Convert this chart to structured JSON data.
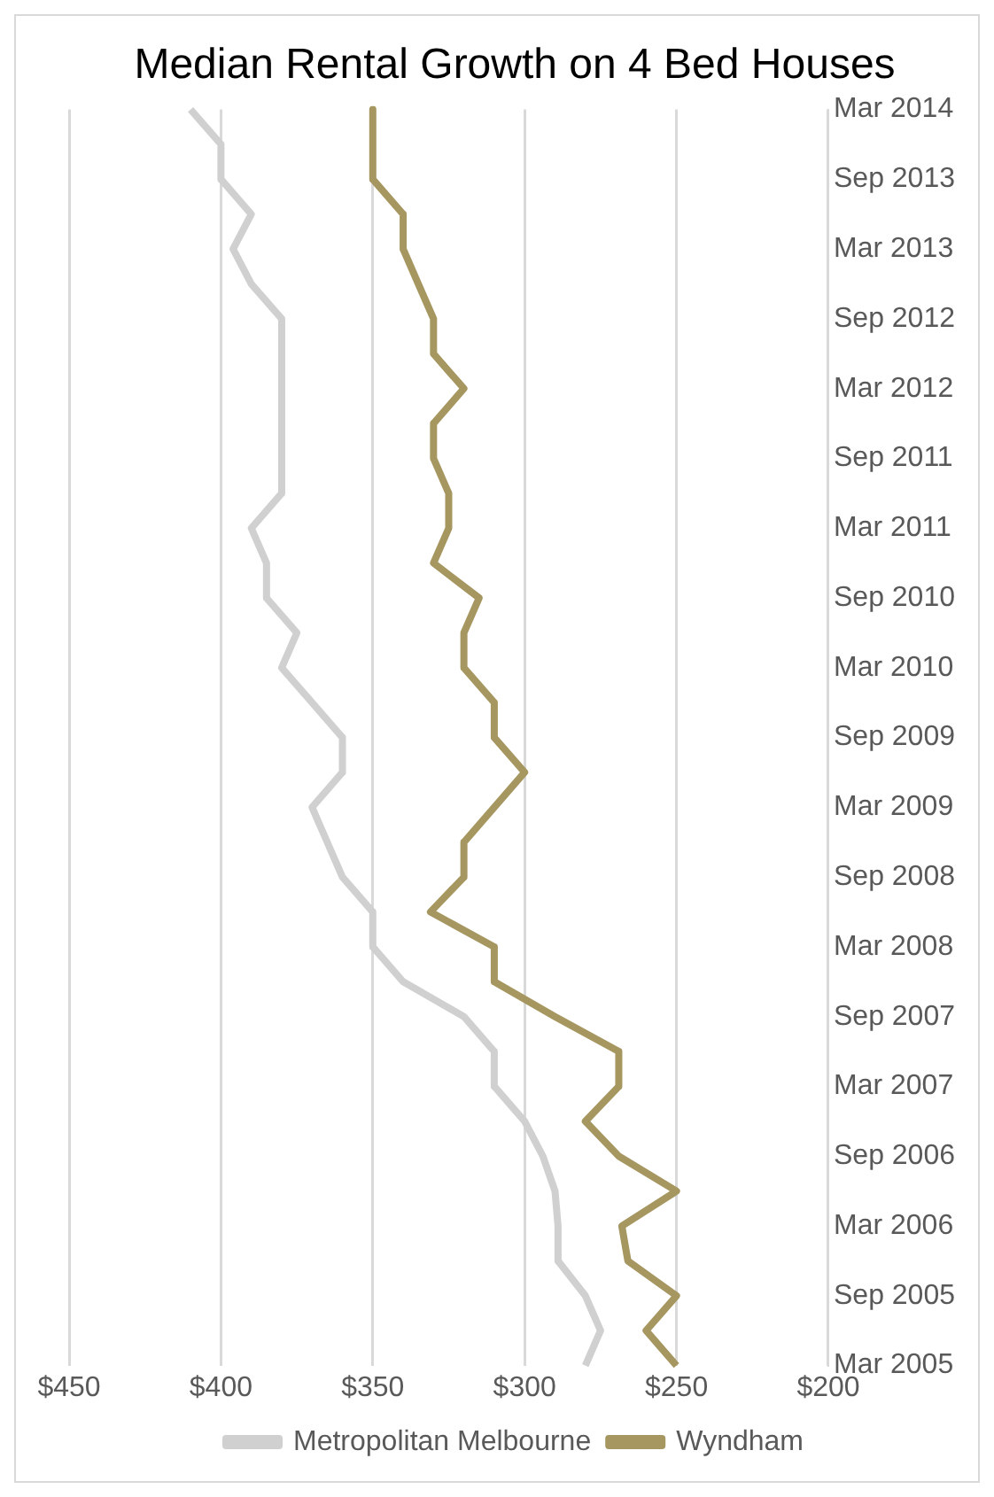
{
  "chart_data": {
    "type": "line",
    "title": "Median Rental Growth on 4 Bed Houses",
    "categories": [
      "Mar 2014",
      null,
      "Sep 2013",
      null,
      "Mar 2013",
      null,
      "Sep 2012",
      null,
      "Mar 2012",
      null,
      "Sep 2011",
      null,
      "Mar 2011",
      null,
      "Sep 2010",
      null,
      "Mar 2010",
      null,
      "Sep 2009",
      null,
      "Mar 2009",
      null,
      "Sep 2008",
      null,
      "Mar 2008",
      null,
      "Sep 2007",
      null,
      "Mar 2007",
      null,
      "Sep 2006",
      null,
      "Mar 2006",
      null,
      "Sep 2005",
      null,
      "Mar 2005"
    ],
    "series": [
      {
        "name": "Metropolitan Melbourne",
        "color": "#d0d0d0",
        "values": [
          410,
          400,
          400,
          390,
          396,
          390,
          380,
          380,
          380,
          380,
          380,
          380,
          390,
          385,
          385,
          375,
          380,
          370,
          360,
          360,
          370,
          365,
          360,
          350,
          350,
          340,
          320,
          310,
          310,
          300,
          294,
          290,
          289,
          289,
          280,
          275,
          280
        ]
      },
      {
        "name": "Wyndham",
        "color": "#a69660",
        "values": [
          350,
          350,
          350,
          340,
          340,
          335,
          330,
          330,
          320,
          330,
          330,
          325,
          325,
          330,
          315,
          320,
          320,
          310,
          310,
          300,
          310,
          320,
          320,
          331,
          310,
          310,
          290,
          269,
          269,
          280,
          269,
          250,
          268,
          266,
          250,
          260,
          250
        ]
      }
    ],
    "orientation": "horizontal",
    "xlim": [
      450,
      200
    ],
    "xticks": [
      {
        "value": 200,
        "label": "$200"
      },
      {
        "value": 250,
        "label": "$250"
      },
      {
        "value": 300,
        "label": "$300"
      },
      {
        "value": 350,
        "label": "$350"
      },
      {
        "value": 400,
        "label": "$400"
      },
      {
        "value": 450,
        "label": "$450"
      }
    ],
    "grid": "x",
    "legend": "bottom",
    "marker": "none",
    "line_style": "solid"
  }
}
